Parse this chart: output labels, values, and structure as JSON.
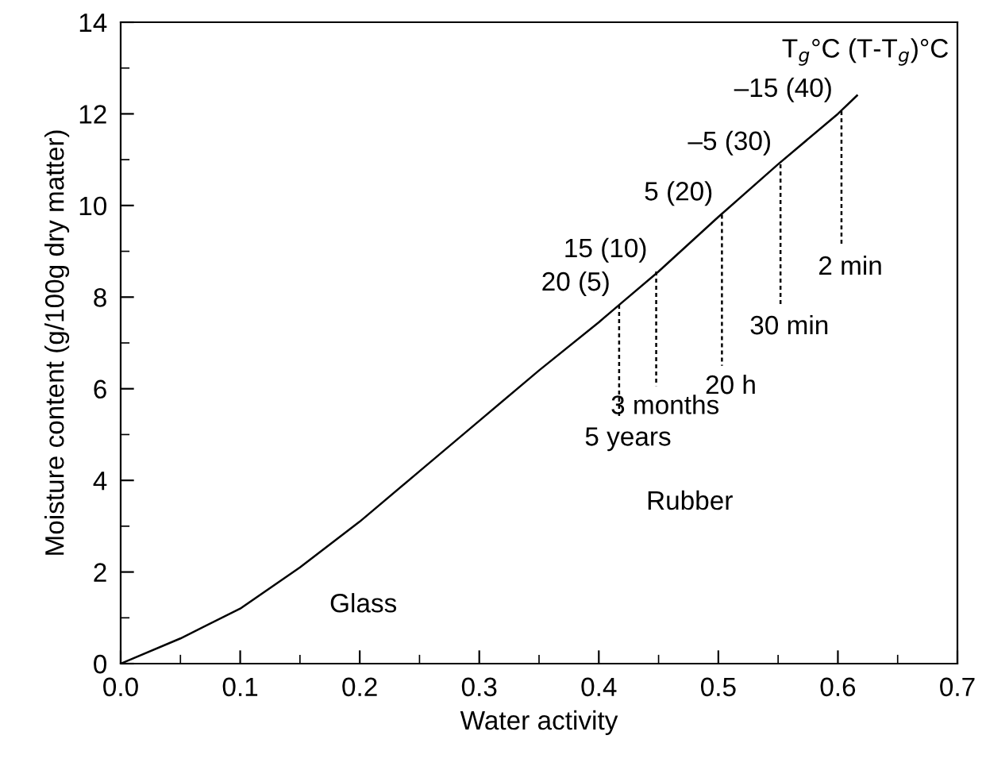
{
  "chart_data": {
    "type": "line",
    "xlabel": "Water activity",
    "ylabel": "Moisture content (g/100g dry matter)",
    "xlim": [
      0.0,
      0.7
    ],
    "xticks": [
      {
        "value": 0,
        "label": "0.0"
      },
      0.1,
      0.2,
      0.3,
      0.4,
      0.5,
      0.6,
      0.7
    ],
    "ylim": [
      0,
      14
    ],
    "yticks": [
      0,
      2,
      4,
      6,
      8,
      10,
      12,
      14
    ],
    "grid": false,
    "legend": false,
    "marker": "none",
    "series": [
      {
        "color": "#000000",
        "line_style": "solid",
        "x": [
          0,
          0.05,
          0.1,
          0.15,
          0.2,
          0.25,
          0.3,
          0.35,
          0.4,
          0.417,
          0.45,
          0.5,
          0.55,
          0.6,
          0.616
        ],
        "values": [
          0,
          0.55,
          1.2,
          2.1,
          3.1,
          4.2,
          5.3,
          6.4,
          7.45,
          7.83,
          8.56,
          9.75,
          10.9,
          12.0,
          12.4
        ]
      },
      {
        "color": "#000000",
        "line_style": "dashed",
        "x": [
          0.417,
          0.417
        ],
        "values": [
          7.83,
          5.37
        ]
      },
      {
        "color": "#000000",
        "line_style": "dashed",
        "x": [
          0.448,
          0.448
        ],
        "values": [
          8.56,
          6.06
        ]
      },
      {
        "color": "#000000",
        "line_style": "dashed",
        "x": [
          0.503,
          0.503
        ],
        "values": [
          9.8,
          6.5
        ]
      },
      {
        "color": "#000000",
        "line_style": "dashed",
        "x": [
          0.552,
          0.552
        ],
        "values": [
          10.9,
          7.8
        ]
      },
      {
        "color": "#000000",
        "line_style": "dashed",
        "x": [
          0.603,
          0.603
        ],
        "values": [
          12.06,
          9.1
        ]
      }
    ],
    "annotations": [
      "T$_{g}$°C (T-T$_{g}$)°C",
      {
        "text": "20 (5)",
        "x": 0.417,
        "y": 7.83
      },
      {
        "text": "15 (10)",
        "x": 0.448,
        "y": 8.56
      },
      {
        "text": "5 (20)",
        "x": 0.503,
        "y": 9.8
      },
      {
        "text": "–5 (30)",
        "x": 0.552,
        "y": 10.9
      },
      {
        "text": "–15 (40)",
        "x": 0.603,
        "y": 12.06
      },
      {
        "text": "5 years",
        "x": 0.417,
        "y": 5.37
      },
      {
        "text": "3 months",
        "x": 0.448,
        "y": 6.06
      },
      {
        "text": "20 h",
        "x": 0.503,
        "y": 6.5
      },
      {
        "text": "30 min",
        "x": 0.552,
        "y": 7.8
      },
      {
        "text": "2 min",
        "x": 0.603,
        "y": 9.1
      },
      "Glass",
      "Rubber"
    ]
  }
}
